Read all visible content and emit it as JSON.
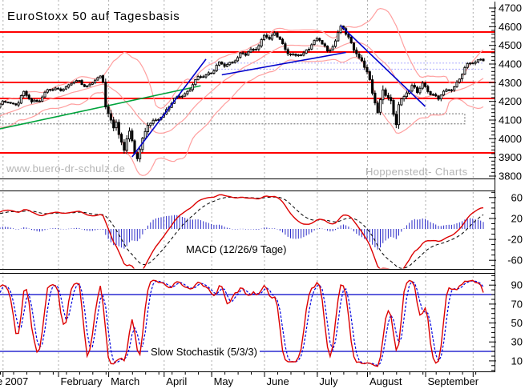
{
  "title": "EuroStoxx 50 auf Tagesbasis",
  "watermark_left": "www.buero-dr-schulz.de",
  "watermark_right": "Hoppenstedt- Charts",
  "colors": {
    "red_line": "#ff0000",
    "pink_band": "#ff9f9f",
    "green_trend": "#00a33c",
    "blue_trend": "#0000cc",
    "dotted_blue": "#9f9fff",
    "gray_box": "#8c8c8c",
    "grid": "#adadad",
    "candle": "#000000",
    "macd_line": "#dd0000",
    "macd_signal": "#000000",
    "macd_hist": "#2b2bc8",
    "stoch_k": "#dd0000",
    "stoch_d": "#0000dd",
    "stoch_level": "#0000c8",
    "axis": "#000000",
    "watermark": "#b4b4b4"
  },
  "chart_data": {
    "type": "candlestick",
    "instrument": "EuroStoxx 50",
    "periodicity": "Tagesbasis (daily)",
    "x_axis": {
      "left_edge_fragment": "e",
      "month_ticks": [
        {
          "label": "2007",
          "day": 1
        },
        {
          "label": "February",
          "day": 22
        },
        {
          "label": "March",
          "day": 41
        },
        {
          "label": "April",
          "day": 62
        },
        {
          "label": "May",
          "day": 80
        },
        {
          "label": "June",
          "day": 100
        },
        {
          "label": "July",
          "day": 120
        },
        {
          "label": "August",
          "day": 139
        },
        {
          "label": "September",
          "day": 161
        },
        {
          "label": "",
          "day": 179
        }
      ],
      "minor_tick_every_days": 5,
      "total_days": 184
    },
    "price_panel": {
      "y_ticks": [
        4700,
        4600,
        4500,
        4400,
        4300,
        4200,
        4100,
        4000,
        3900,
        3800
      ],
      "y_minor_step": 20,
      "y_range_top": 4700,
      "y_range_bottom": 3800,
      "red_levels": [
        4570,
        4465,
        4300,
        4215,
        3925
      ],
      "gray_box": {
        "day_start": 0,
        "day_end": 176,
        "top_value": 4134,
        "bottom_value": 4080
      },
      "dotted_levels": {
        "values": [
          4405,
          4372
        ],
        "day_start": 79,
        "day_end": 183
      },
      "trendlines": [
        {
          "name": "green-uptrend",
          "color_key": "green_trend",
          "d1": 0,
          "v1": 4053,
          "d2": 76,
          "v2": 4284
        },
        {
          "name": "blue-march-uptrend",
          "color_key": "blue_trend",
          "d1": 50,
          "v1": 3903,
          "d2": 78,
          "v2": 4426
        },
        {
          "name": "blue-summer-uptrend",
          "color_key": "blue_trend",
          "d1": 84,
          "v1": 4342,
          "d2": 131,
          "v2": 4462
        },
        {
          "name": "blue-july-downtrend",
          "color_key": "blue_trend",
          "d1": 129,
          "v1": 4606,
          "d2": 161,
          "v2": 4173
        }
      ],
      "bollinger": {
        "period": 20,
        "stddev": 2
      },
      "close_anchors": [
        [
          0,
          4175
        ],
        [
          3,
          4205
        ],
        [
          6,
          4190
        ],
        [
          9,
          4235
        ],
        [
          12,
          4200
        ],
        [
          15,
          4220
        ],
        [
          18,
          4248
        ],
        [
          22,
          4268
        ],
        [
          26,
          4288
        ],
        [
          30,
          4302
        ],
        [
          33,
          4292
        ],
        [
          36,
          4312
        ],
        [
          38,
          4316
        ],
        [
          39,
          4302
        ],
        [
          40,
          4185
        ],
        [
          41,
          4148
        ],
        [
          43,
          4070
        ],
        [
          44,
          4105
        ],
        [
          45,
          4015
        ],
        [
          46,
          3958
        ],
        [
          47,
          3922
        ],
        [
          48,
          4002
        ],
        [
          49,
          4038
        ],
        [
          50,
          3988
        ],
        [
          51,
          3942
        ],
        [
          52,
          3916
        ],
        [
          54,
          3992
        ],
        [
          56,
          4062
        ],
        [
          58,
          4092
        ],
        [
          60,
          4122
        ],
        [
          62,
          4138
        ],
        [
          65,
          4182
        ],
        [
          68,
          4228
        ],
        [
          71,
          4262
        ],
        [
          74,
          4302
        ],
        [
          77,
          4332
        ],
        [
          80,
          4368
        ],
        [
          83,
          4398
        ],
        [
          85,
          4382
        ],
        [
          88,
          4422
        ],
        [
          91,
          4452
        ],
        [
          93,
          4438
        ],
        [
          96,
          4482
        ],
        [
          99,
          4532
        ],
        [
          100,
          4556
        ],
        [
          102,
          4522
        ],
        [
          104,
          4552
        ],
        [
          106,
          4546
        ],
        [
          108,
          4482
        ],
        [
          110,
          4448
        ],
        [
          112,
          4428
        ],
        [
          114,
          4452
        ],
        [
          116,
          4482
        ],
        [
          118,
          4512
        ],
        [
          120,
          4526
        ],
        [
          122,
          4502
        ],
        [
          124,
          4472
        ],
        [
          126,
          4512
        ],
        [
          128,
          4562
        ],
        [
          129,
          4592
        ],
        [
          130,
          4582
        ],
        [
          131,
          4552
        ],
        [
          133,
          4512
        ],
        [
          135,
          4462
        ],
        [
          137,
          4418
        ],
        [
          139,
          4352
        ],
        [
          141,
          4242
        ],
        [
          143,
          4148
        ],
        [
          144,
          4218
        ],
        [
          145,
          4272
        ],
        [
          147,
          4222
        ],
        [
          148,
          4182
        ],
        [
          149,
          4122
        ],
        [
          150,
          4078
        ],
        [
          151,
          4178
        ],
        [
          152,
          4208
        ],
        [
          154,
          4258
        ],
        [
          156,
          4282
        ],
        [
          158,
          4242
        ],
        [
          160,
          4292
        ],
        [
          162,
          4268
        ],
        [
          164,
          4242
        ],
        [
          166,
          4208
        ],
        [
          168,
          4242
        ],
        [
          170,
          4258
        ],
        [
          172,
          4292
        ],
        [
          174,
          4328
        ],
        [
          176,
          4368
        ],
        [
          178,
          4398
        ],
        [
          180,
          4422
        ],
        [
          182,
          4438
        ],
        [
          183,
          4428
        ]
      ]
    },
    "macd_panel": {
      "label": "MACD (12/26/9 Tage)",
      "params": [
        12,
        26,
        9
      ],
      "y_ticks": [
        60,
        20,
        -20,
        -60
      ],
      "y_minor_step": 10
    },
    "stochastic_panel": {
      "label": "Slow Stochastik (5/3/3)",
      "params": [
        5,
        3,
        3
      ],
      "y_ticks": [
        90,
        70,
        50,
        30,
        10
      ],
      "y_minor_step": 5,
      "levels": [
        80,
        20
      ]
    },
    "noise_seed": 7
  }
}
